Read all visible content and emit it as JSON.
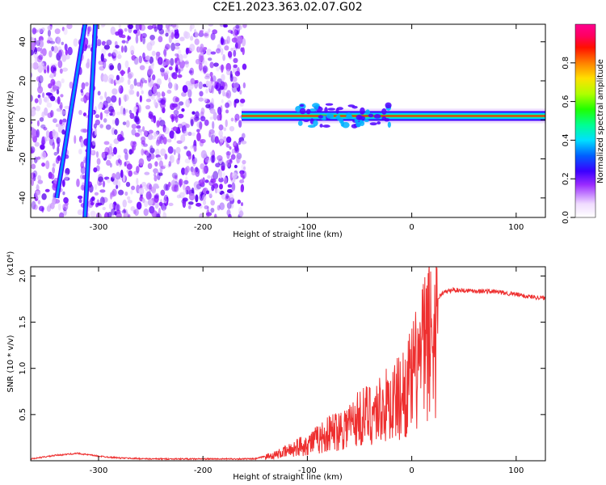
{
  "title": "C2E1.2023.363.02.07.G02",
  "chart_data": [
    {
      "type": "heatmap",
      "xlabel": "Height of straight line (km)",
      "ylabel": "Frequency (Hz)",
      "xlim": [
        -365,
        128
      ],
      "ylim": [
        -50,
        49
      ],
      "xticks": [
        -300,
        -200,
        -100,
        0,
        100
      ],
      "yticks": [
        -40,
        -20,
        0,
        20,
        40
      ],
      "colorbar": {
        "label": "Normalized spectral amplitude",
        "range": [
          0,
          1
        ],
        "ticks": [
          0.0,
          0.2,
          0.4,
          0.6,
          0.8
        ]
      },
      "features": [
        {
          "kind": "diagonal-line",
          "from": [
            -340,
            -40
          ],
          "to": [
            -313,
            49
          ]
        },
        {
          "kind": "diagonal-line",
          "from": [
            -313,
            -50
          ],
          "to": [
            -303,
            49
          ]
        },
        {
          "kind": "speckle-region",
          "x": [
            -365,
            -160
          ],
          "y": [
            -50,
            49
          ]
        },
        {
          "kind": "horizontal-band",
          "x": [
            -163,
            128
          ],
          "freq": 2
        }
      ]
    },
    {
      "type": "line",
      "xlabel": "Height of straight line (km)",
      "ylabel": "SNR (10 * v/v)",
      "multiplier": "(x10⁴)",
      "xlim": [
        -365,
        128
      ],
      "ylim": [
        0,
        2.1
      ],
      "xticks": [
        -300,
        -200,
        -100,
        0,
        100
      ],
      "yticks": [
        0.5,
        1.0,
        1.5,
        2.0
      ],
      "series": [
        {
          "color": "#ee3030",
          "x": [
            -365,
            -340,
            -320,
            -300,
            -280,
            -250,
            -200,
            -150,
            -140,
            -130,
            -120,
            -110,
            -100,
            -90,
            -80,
            -70,
            -60,
            -50,
            -40,
            -30,
            -20,
            -10,
            0,
            10,
            20,
            30,
            40,
            60,
            80,
            100,
            110,
            120,
            128
          ],
          "y": [
            0.02,
            0.06,
            0.08,
            0.05,
            0.03,
            0.02,
            0.02,
            0.02,
            0.05,
            0.08,
            0.12,
            0.18,
            0.22,
            0.28,
            0.35,
            0.42,
            0.48,
            0.56,
            0.62,
            0.68,
            0.75,
            0.85,
            1.05,
            1.4,
            1.7,
            1.82,
            1.85,
            1.84,
            1.83,
            1.8,
            1.78,
            1.77,
            1.76
          ]
        }
      ]
    }
  ]
}
